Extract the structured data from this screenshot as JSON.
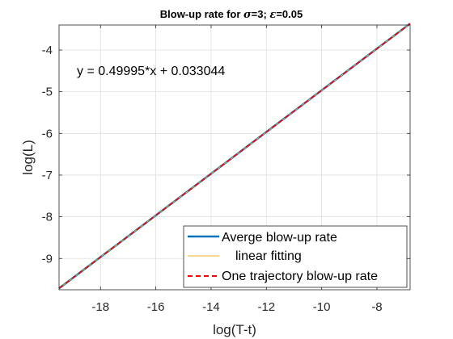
{
  "chart_data": {
    "type": "line",
    "title": {
      "prefix": "Blow-up rate for ",
      "sym1": "σ",
      "mid": "=3; ",
      "sym2": "ε",
      "suffix": "=0.05"
    },
    "xlabel": "log(T-t)",
    "ylabel": "log(L)",
    "xlim": [
      -19.5,
      -6.8
    ],
    "ylim": [
      -9.75,
      -3.4
    ],
    "xticks": [
      -18,
      -16,
      -14,
      -12,
      -10,
      -8
    ],
    "xtick_labels": [
      "-18",
      "-16",
      "-14",
      "-12",
      "-10",
      "-8"
    ],
    "yticks": [
      -9,
      -8,
      -7,
      -6,
      -5,
      -4
    ],
    "ytick_labels": [
      "-9",
      "-8",
      "-7",
      "-6",
      "-5",
      "-4"
    ],
    "grid": true,
    "legend_position": "bottom-right",
    "annotation": "y = 0.49995*x + 0.033044",
    "series": [
      {
        "name": "Averge blow-up rate",
        "style": "solid",
        "color": "#0072BD",
        "x": [
          -19.5,
          -18,
          -16,
          -14,
          -12,
          -10,
          -8,
          -6.8
        ],
        "y": [
          -9.717,
          -8.966,
          -7.966,
          -6.966,
          -5.966,
          -4.966,
          -3.966,
          -3.367
        ]
      },
      {
        "name": "linear fitting",
        "style": "solid",
        "color": "#EDB120",
        "x": [
          -19.5,
          -6.8
        ],
        "y": [
          -9.716,
          -3.367
        ]
      },
      {
        "name": "One trajectory blow-up rate",
        "style": "dashed",
        "color": "#FF0000",
        "x": [
          -19.5,
          -18,
          -16,
          -14,
          -12,
          -10,
          -8,
          -6.8
        ],
        "y": [
          -9.716,
          -8.966,
          -7.966,
          -6.966,
          -5.966,
          -4.966,
          -3.966,
          -3.366
        ]
      }
    ]
  },
  "colors": {
    "average": "#0072BD",
    "fit": "#EDB120",
    "trajectory": "#FF0000",
    "grid": "#DEDEDE",
    "axes": "#262626"
  }
}
